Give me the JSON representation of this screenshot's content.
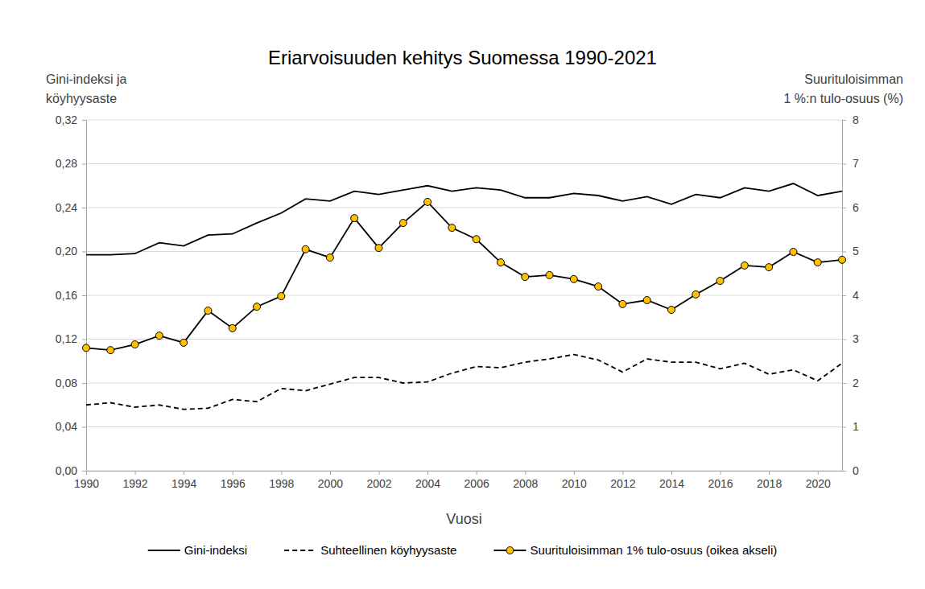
{
  "chart_data": {
    "type": "line",
    "title": "Eriarvoisuuden kehitys Suomessa 1990-2021",
    "x_label": "Vuosi",
    "y_label": [
      "Gini-indeksi ja",
      "köyhyysaste"
    ],
    "y2_label": [
      "Suurituloisimman",
      "1 %:n tulo-osuus (%)"
    ],
    "x": [
      1990,
      1991,
      1992,
      1993,
      1994,
      1995,
      1996,
      1997,
      1998,
      1999,
      2000,
      2001,
      2002,
      2003,
      2004,
      2005,
      2006,
      2007,
      2008,
      2009,
      2010,
      2011,
      2012,
      2013,
      2014,
      2015,
      2016,
      2017,
      2018,
      2019,
      2020,
      2021
    ],
    "xlim": [
      1990,
      2021
    ],
    "xticks": [
      1990,
      1992,
      1994,
      1996,
      1998,
      2000,
      2002,
      2004,
      2006,
      2008,
      2010,
      2012,
      2014,
      2016,
      2018,
      2020
    ],
    "ylim": [
      0,
      0.32
    ],
    "yticks": [
      {
        "value": 0,
        "label": "0,00"
      },
      {
        "value": 0.04,
        "label": "0,04"
      },
      {
        "value": 0.08,
        "label": "0,08"
      },
      {
        "value": 0.12,
        "label": "0,12"
      },
      {
        "value": 0.16,
        "label": "0,16"
      },
      {
        "value": 0.2,
        "label": "0,20"
      },
      {
        "value": 0.24,
        "label": "0,24"
      },
      {
        "value": 0.28,
        "label": "0,28"
      },
      {
        "value": 0.32,
        "label": "0,32"
      }
    ],
    "y2lim": [
      0,
      8
    ],
    "y2ticks": [
      0,
      1,
      2,
      3,
      4,
      5,
      6,
      7,
      8
    ],
    "grid": true,
    "legend": "bottom",
    "series": [
      {
        "name": "Gini-indeksi",
        "color": "#000000",
        "line_style": "solid",
        "marker": "none",
        "values": [
          0.197,
          0.197,
          0.198,
          0.208,
          0.205,
          0.215,
          0.216,
          0.226,
          0.235,
          0.248,
          0.246,
          0.255,
          0.252,
          0.256,
          0.26,
          0.255,
          0.258,
          0.256,
          0.249,
          0.249,
          0.253,
          0.251,
          0.246,
          0.25,
          0.243,
          0.252,
          0.249,
          0.258,
          0.255,
          0.262,
          0.251,
          0.255
        ]
      },
      {
        "name": "Suhteellinen köyhyysaste",
        "color": "#000000",
        "line_style": "dashed",
        "marker": "none",
        "values": [
          0.06,
          0.062,
          0.058,
          0.06,
          0.056,
          0.057,
          0.065,
          0.063,
          0.075,
          0.073,
          0.079,
          0.085,
          0.085,
          0.08,
          0.081,
          0.089,
          0.095,
          0.094,
          0.099,
          0.102,
          0.106,
          0.101,
          0.09,
          0.102,
          0.099,
          0.099,
          0.093,
          0.098,
          0.088,
          0.092,
          0.082,
          0.098
        ]
      },
      {
        "name": "Suurituloisimman 1% tulo-osuus (oikea akseli)",
        "color": "#FFC000",
        "line_style": "solid",
        "marker": "circle",
        "axis": "y2",
        "values": [
          2.8,
          2.75,
          2.88,
          3.08,
          2.92,
          3.65,
          3.25,
          3.74,
          3.98,
          5.05,
          4.86,
          5.76,
          5.08,
          5.65,
          6.13,
          5.54,
          5.28,
          4.75,
          4.42,
          4.46,
          4.37,
          4.2,
          3.8,
          3.89,
          3.67,
          4.02,
          4.33,
          4.68,
          4.64,
          4.99,
          4.75,
          4.81
        ]
      }
    ]
  }
}
